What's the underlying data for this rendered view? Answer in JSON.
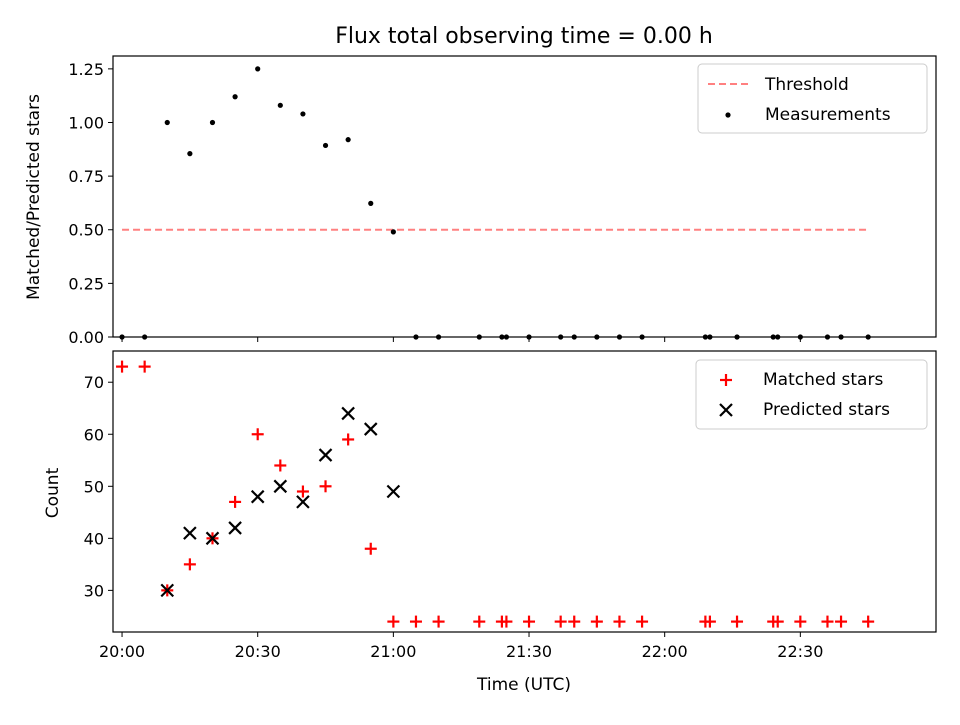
{
  "chart_data": [
    {
      "type": "scatter",
      "title": "Flux total observing time = 0.00 h",
      "xlabel": "",
      "ylabel": "Matched/Predicted stars",
      "ylim": [
        0,
        1.31
      ],
      "yticks": [
        "0.00",
        "0.25",
        "0.50",
        "0.75",
        "1.00",
        "1.25"
      ],
      "ytick_values": [
        0,
        0.25,
        0.5,
        0.75,
        1.0,
        1.25
      ],
      "legend_position": "top-right",
      "series": [
        {
          "name": "Threshold",
          "kind": "line",
          "style": "dashed",
          "color": "#ff8080",
          "points": [
            [
              "20:00",
              0.5
            ],
            [
              "22:45",
              0.5
            ]
          ]
        },
        {
          "name": "Measurements",
          "kind": "scatter",
          "marker": "dot",
          "color": "#000000",
          "points": [
            [
              "20:00",
              0.0
            ],
            [
              "20:05",
              0.0
            ],
            [
              "20:10",
              1.0
            ],
            [
              "20:15",
              0.855
            ],
            [
              "20:20",
              1.0
            ],
            [
              "20:25",
              1.12
            ],
            [
              "20:30",
              1.25
            ],
            [
              "20:35",
              1.08
            ],
            [
              "20:40",
              1.04
            ],
            [
              "20:45",
              0.893
            ],
            [
              "20:50",
              0.92
            ],
            [
              "20:55",
              0.623
            ],
            [
              "21:00",
              0.49
            ],
            [
              "21:05",
              0.0
            ],
            [
              "21:10",
              0.0
            ],
            [
              "21:19",
              0.0
            ],
            [
              "21:24",
              0.0
            ],
            [
              "21:25",
              0.0
            ],
            [
              "21:30",
              0.0
            ],
            [
              "21:37",
              0.0
            ],
            [
              "21:40",
              0.0
            ],
            [
              "21:45",
              0.0
            ],
            [
              "21:50",
              0.0
            ],
            [
              "21:55",
              0.0
            ],
            [
              "22:09",
              0.0
            ],
            [
              "22:10",
              0.0
            ],
            [
              "22:16",
              0.0
            ],
            [
              "22:24",
              0.0
            ],
            [
              "22:25",
              0.0
            ],
            [
              "22:30",
              0.0
            ],
            [
              "22:36",
              0.0
            ],
            [
              "22:39",
              0.0
            ],
            [
              "22:45",
              0.0
            ]
          ]
        }
      ]
    },
    {
      "type": "scatter",
      "title": "",
      "xlabel": "Time (UTC)",
      "ylabel": "Count",
      "xlim": [
        "19:58",
        "23:00"
      ],
      "xticks": [
        "20:00",
        "20:30",
        "21:00",
        "21:30",
        "22:00",
        "22:30"
      ],
      "ylim": [
        22,
        76
      ],
      "yticks": [
        "30",
        "40",
        "50",
        "60",
        "70"
      ],
      "ytick_values": [
        30,
        40,
        50,
        60,
        70
      ],
      "legend_position": "top-right",
      "series": [
        {
          "name": "Matched stars",
          "kind": "scatter",
          "marker": "plus",
          "color": "#ff0000",
          "points": [
            [
              "20:00",
              73
            ],
            [
              "20:05",
              73
            ],
            [
              "20:10",
              30
            ],
            [
              "20:15",
              35
            ],
            [
              "20:20",
              40
            ],
            [
              "20:25",
              47
            ],
            [
              "20:30",
              60
            ],
            [
              "20:35",
              54
            ],
            [
              "20:40",
              49
            ],
            [
              "20:45",
              50
            ],
            [
              "20:50",
              59
            ],
            [
              "20:55",
              38
            ],
            [
              "21:00",
              24
            ],
            [
              "21:05",
              24
            ],
            [
              "21:10",
              24
            ],
            [
              "21:19",
              24
            ],
            [
              "21:24",
              24
            ],
            [
              "21:25",
              24
            ],
            [
              "21:30",
              24
            ],
            [
              "21:37",
              24
            ],
            [
              "21:40",
              24
            ],
            [
              "21:45",
              24
            ],
            [
              "21:50",
              24
            ],
            [
              "21:55",
              24
            ],
            [
              "22:09",
              24
            ],
            [
              "22:10",
              24
            ],
            [
              "22:16",
              24
            ],
            [
              "22:24",
              24
            ],
            [
              "22:25",
              24
            ],
            [
              "22:30",
              24
            ],
            [
              "22:36",
              24
            ],
            [
              "22:39",
              24
            ],
            [
              "22:45",
              24
            ]
          ]
        },
        {
          "name": "Predicted stars",
          "kind": "scatter",
          "marker": "x",
          "color": "#000000",
          "points": [
            [
              "20:10",
              30
            ],
            [
              "20:15",
              41
            ],
            [
              "20:20",
              40
            ],
            [
              "20:25",
              42
            ],
            [
              "20:30",
              48
            ],
            [
              "20:35",
              50
            ],
            [
              "20:40",
              47
            ],
            [
              "20:45",
              56
            ],
            [
              "20:50",
              64
            ],
            [
              "20:55",
              61
            ],
            [
              "21:00",
              49
            ]
          ]
        }
      ]
    }
  ]
}
